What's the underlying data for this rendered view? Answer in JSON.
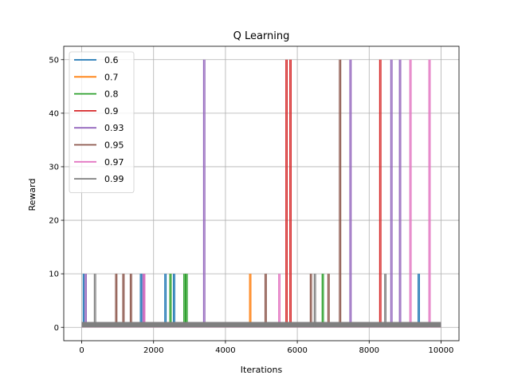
{
  "chart_data": {
    "type": "line",
    "title": "Q Learning",
    "xlabel": "Iterations",
    "ylabel": "Reward",
    "xlim": [
      -500,
      10500
    ],
    "ylim": [
      -2.5,
      52.5
    ],
    "xticks": [
      0,
      2000,
      4000,
      6000,
      8000,
      10000
    ],
    "yticks": [
      0,
      10,
      20,
      30,
      40,
      50
    ],
    "grid": true,
    "legend_position": "top-left",
    "baseline_band": [
      0,
      1
    ],
    "x_range": [
      0,
      10000
    ],
    "series": [
      {
        "name": "0.6",
        "color": "#1f77b4",
        "spikes": [
          [
            60,
            10
          ],
          [
            1650,
            10
          ],
          [
            2330,
            10
          ],
          [
            2570,
            10
          ],
          [
            9380,
            10
          ]
        ]
      },
      {
        "name": "0.7",
        "color": "#ff7f0e",
        "spikes": [
          [
            4690,
            10
          ]
        ]
      },
      {
        "name": "0.8",
        "color": "#2ca02c",
        "spikes": [
          [
            2470,
            10
          ],
          [
            2860,
            10
          ],
          [
            2920,
            10
          ],
          [
            6710,
            10
          ]
        ]
      },
      {
        "name": "0.9",
        "color": "#d62728",
        "spikes": [
          [
            5700,
            50
          ],
          [
            5810,
            50
          ],
          [
            8310,
            50
          ]
        ]
      },
      {
        "name": "0.93",
        "color": "#9467bd",
        "spikes": [
          [
            110,
            10
          ],
          [
            1720,
            10
          ],
          [
            3410,
            50
          ],
          [
            7480,
            50
          ],
          [
            8620,
            50
          ],
          [
            8860,
            50
          ]
        ]
      },
      {
        "name": "0.95",
        "color": "#8c564b",
        "spikes": [
          [
            960,
            10
          ],
          [
            1160,
            10
          ],
          [
            1370,
            10
          ],
          [
            5120,
            10
          ],
          [
            6380,
            10
          ],
          [
            6870,
            10
          ],
          [
            7190,
            50
          ]
        ]
      },
      {
        "name": "0.97",
        "color": "#e377c2",
        "spikes": [
          [
            1740,
            10
          ],
          [
            5500,
            10
          ],
          [
            9150,
            50
          ],
          [
            9680,
            50
          ]
        ]
      },
      {
        "name": "0.99",
        "color": "#7f7f7f",
        "spikes": [
          [
            370,
            10
          ],
          [
            6490,
            10
          ],
          [
            8450,
            10
          ]
        ]
      }
    ]
  }
}
